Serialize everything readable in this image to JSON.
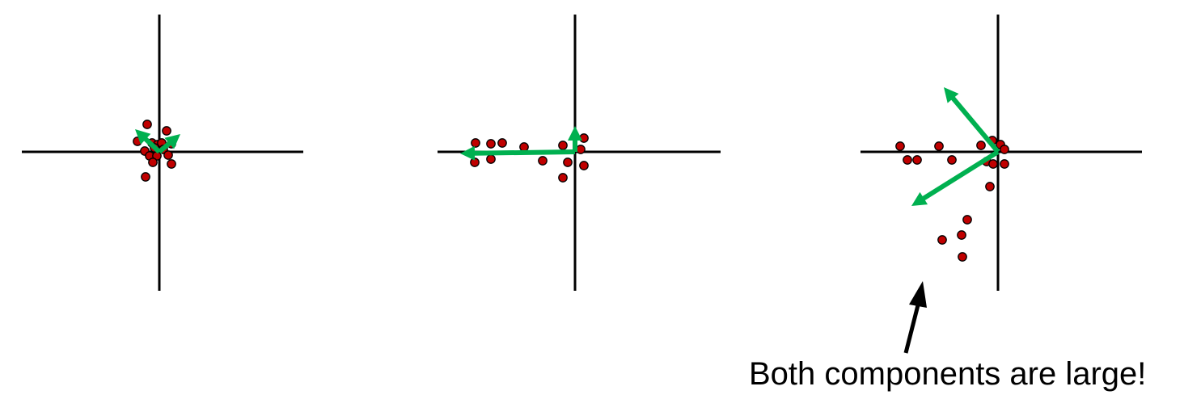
{
  "panels": [
    {
      "name": "panel-small-components",
      "points": [
        [
          -15,
          -34
        ],
        [
          9,
          -26
        ],
        [
          -27,
          -13
        ],
        [
          -9,
          -11
        ],
        [
          -2,
          -9
        ],
        [
          3,
          -11
        ],
        [
          15,
          -10
        ],
        [
          -6,
          -5
        ],
        [
          -18,
          -1
        ],
        [
          5,
          -3
        ],
        [
          -12,
          5
        ],
        [
          -3,
          5
        ],
        [
          11,
          4
        ],
        [
          -8,
          13
        ],
        [
          15,
          15
        ],
        [
          -17,
          31
        ]
      ],
      "vectors": [
        [
          -30,
          -28
        ],
        [
          26,
          -22
        ]
      ]
    },
    {
      "name": "panel-one-large-component",
      "points": [
        [
          -123,
          -11
        ],
        [
          -104,
          -10
        ],
        [
          -90,
          -11
        ],
        [
          -63,
          -6
        ],
        [
          -15,
          -8
        ],
        [
          11,
          -17
        ],
        [
          7,
          -3
        ],
        [
          -124,
          13
        ],
        [
          -104,
          9
        ],
        [
          -40,
          11
        ],
        [
          -9,
          13
        ],
        [
          11,
          17
        ],
        [
          -15,
          32
        ]
      ],
      "vectors": [
        [
          -142,
          2
        ],
        [
          0,
          -32
        ]
      ]
    },
    {
      "name": "panel-both-components-large",
      "points": [
        [
          -121,
          -7
        ],
        [
          -73,
          -7
        ],
        [
          -21,
          -8
        ],
        [
          -7,
          -14
        ],
        [
          3,
          -9
        ],
        [
          8,
          -3
        ],
        [
          -112,
          10
        ],
        [
          -100,
          10
        ],
        [
          -57,
          10
        ],
        [
          -14,
          12
        ],
        [
          -6,
          15
        ],
        [
          8,
          15
        ],
        [
          -10,
          43
        ],
        [
          -38,
          84
        ],
        [
          -45,
          103
        ],
        [
          -69,
          109
        ],
        [
          -44,
          130
        ]
      ],
      "vectors": [
        [
          -67,
          -80
        ],
        [
          -107,
          67
        ]
      ]
    }
  ],
  "callout": {
    "text": "Both components are large!"
  }
}
